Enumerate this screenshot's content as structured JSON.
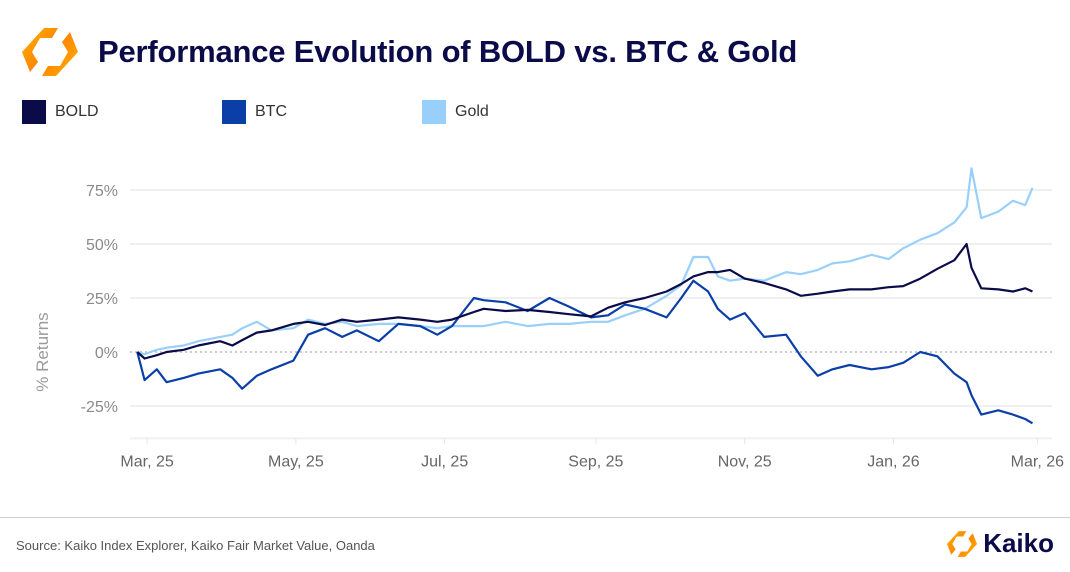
{
  "header": {
    "title": "Performance Evolution of BOLD vs. BTC & Gold",
    "logo_icon": "kaiko-logo-icon"
  },
  "footer": {
    "source": "Source: Kaiko Index Explorer, Kaiko Fair Market Value, Oanda",
    "brand": "Kaiko"
  },
  "colors": {
    "BOLD": "#0b0b4a",
    "BTC": "#0a3fa8",
    "Gold": "#99d0fb",
    "title": "#0b0b4a",
    "zero_line": "#bbbbbb",
    "grid": "#f0f0f0"
  },
  "chart_data": {
    "type": "line",
    "title": "Performance Evolution of BOLD vs. BTC & Gold",
    "xlabel": "",
    "ylabel": "% Returns",
    "ylim": [
      -40,
      90
    ],
    "yticks": [
      -25,
      0,
      25,
      50,
      75
    ],
    "ytick_labels": [
      "-25%",
      "0%",
      "25%",
      "50%",
      "75%"
    ],
    "xlim": [
      "2025-02-22",
      "2026-03-07"
    ],
    "xticks": [
      "2025-03-01",
      "2025-05-01",
      "2025-07-01",
      "2025-09-01",
      "2025-11-01",
      "2026-01-01",
      "2026-03-01"
    ],
    "xtick_labels": [
      "Mar, 25",
      "May, 25",
      "Jul, 25",
      "Sep, 25",
      "Nov, 25",
      "Jan, 26",
      "Mar, 26"
    ],
    "grid": true,
    "zero_line": "dotted",
    "legend": "top-left",
    "x": [
      "2025-02-25",
      "2025-02-28",
      "2025-03-05",
      "2025-03-09",
      "2025-03-16",
      "2025-03-22",
      "2025-03-31",
      "2025-04-05",
      "2025-04-09",
      "2025-04-15",
      "2025-04-21",
      "2025-04-30",
      "2025-05-06",
      "2025-05-13",
      "2025-05-20",
      "2025-05-26",
      "2025-06-04",
      "2025-06-12",
      "2025-06-21",
      "2025-06-28",
      "2025-07-04",
      "2025-07-13",
      "2025-07-17",
      "2025-07-26",
      "2025-08-04",
      "2025-08-13",
      "2025-08-21",
      "2025-08-30",
      "2025-09-06",
      "2025-09-13",
      "2025-09-21",
      "2025-09-30",
      "2025-10-06",
      "2025-10-11",
      "2025-10-17",
      "2025-10-21",
      "2025-10-26",
      "2025-11-01",
      "2025-11-09",
      "2025-11-18",
      "2025-11-24",
      "2025-12-01",
      "2025-12-07",
      "2025-12-14",
      "2025-12-23",
      "2025-12-30",
      "2026-01-05",
      "2026-01-12",
      "2026-01-19",
      "2026-01-26",
      "2026-01-31",
      "2026-02-02",
      "2026-02-06",
      "2026-02-13",
      "2026-02-19",
      "2026-02-24",
      "2026-02-27"
    ],
    "series": [
      {
        "name": "BOLD",
        "values": [
          0,
          -3,
          -1.5,
          0,
          1,
          3,
          5,
          3,
          5.5,
          9,
          10,
          13,
          14,
          12.5,
          15,
          14,
          15,
          16,
          15,
          14,
          15,
          18.5,
          20,
          19,
          19.5,
          18.5,
          17.5,
          16.5,
          20.5,
          23,
          25,
          28,
          31.5,
          35,
          37,
          37,
          38,
          34,
          32,
          29,
          26,
          27,
          28,
          29,
          29,
          30,
          30.5,
          34,
          38.5,
          42.5,
          50,
          39,
          29.5,
          29,
          28,
          29.5,
          28
        ]
      },
      {
        "name": "BTC",
        "values": [
          0,
          -13,
          -8,
          -14,
          -12,
          -10,
          -8,
          -12,
          -17,
          -11,
          -8,
          -4,
          8,
          11,
          7,
          10,
          5,
          13,
          12,
          8,
          12,
          25,
          24,
          23,
          19,
          25,
          21,
          16,
          17,
          22,
          20,
          16,
          25,
          33,
          28,
          20,
          15,
          18,
          7,
          8,
          -2,
          -11,
          -8,
          -6,
          -8,
          -7,
          -5,
          0,
          -2,
          -10,
          -14,
          -20,
          -29,
          -27,
          -29,
          -31,
          -33
        ]
      },
      {
        "name": "Gold",
        "values": [
          0,
          -1,
          1,
          2,
          3,
          5,
          7,
          8,
          11,
          14,
          10,
          11,
          15,
          13,
          14,
          12,
          13,
          13,
          12,
          11,
          12,
          12,
          12,
          14,
          12,
          13,
          13,
          14,
          14,
          17,
          20,
          26,
          31,
          44,
          44,
          35,
          33,
          34,
          33,
          37,
          36,
          38,
          41,
          42,
          45,
          43,
          48,
          52,
          55,
          60,
          67,
          85,
          62,
          65,
          70,
          68,
          76
        ]
      }
    ]
  }
}
